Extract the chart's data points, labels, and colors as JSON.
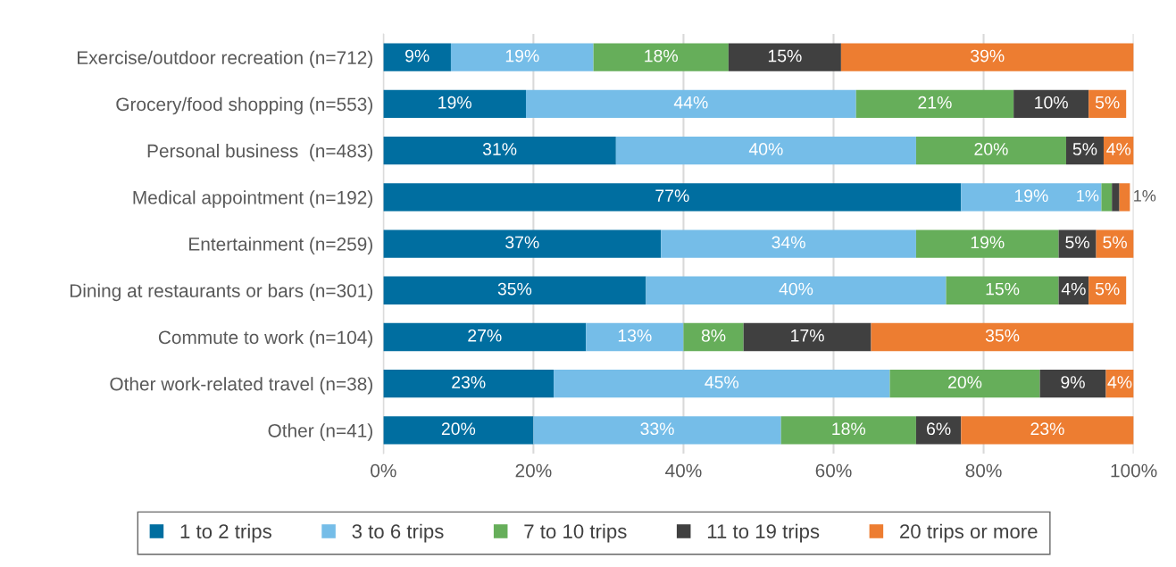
{
  "chart_data": {
    "type": "bar",
    "orientation": "horizontal",
    "stacked": true,
    "categories": [
      "Exercise/outdoor recreation (n=712)",
      "Grocery/food shopping (n=553)",
      "Personal business  (n=483)",
      "Medical appointment (n=192)",
      "Entertainment (n=259)",
      "Dining at restaurants or bars (n=301)",
      "Commute to work (n=104)",
      "Other work-related travel (n=38)",
      "Other (n=41)"
    ],
    "series": [
      {
        "name": "1 to 2 trips",
        "color": "#006ea0",
        "values": [
          9,
          19,
          31,
          77,
          37,
          35,
          27,
          22.7,
          20
        ],
        "value_labels": [
          "9%",
          "19%",
          "31%",
          "77%",
          "37%",
          "35%",
          "27%",
          "23%",
          "20%"
        ]
      },
      {
        "name": "3 to 6 trips",
        "color": "#75bde8",
        "values": [
          19,
          44,
          40,
          18.7,
          34,
          40,
          13,
          44.8,
          33
        ],
        "value_labels": [
          "19%",
          "44%",
          "40%",
          "19%",
          "34%",
          "40%",
          "13%",
          "45%",
          "33%"
        ]
      },
      {
        "name": "7 to 10 trips",
        "color": "#66ae5a",
        "values": [
          18,
          21,
          20,
          1.4,
          19,
          15,
          8,
          20,
          18
        ],
        "value_labels": [
          "18%",
          "21%",
          "20%",
          "1%",
          "19%",
          "15%",
          "8%",
          "20%",
          "18%"
        ]
      },
      {
        "name": "11 to 19 trips",
        "color": "#404040",
        "values": [
          15,
          10,
          5,
          1,
          5,
          4,
          17,
          8.8,
          6
        ],
        "value_labels": [
          "15%",
          "10%",
          "5%",
          null,
          "5%",
          "4%",
          "17%",
          "9%",
          "6%"
        ]
      },
      {
        "name": "20 trips or more",
        "color": "#ed7d31",
        "values": [
          39,
          5,
          4,
          1.4,
          5,
          5,
          35,
          3.7,
          23
        ],
        "value_labels": [
          "39%",
          "5%",
          "4%",
          "1%",
          "5%",
          "5%",
          "35%",
          "4%",
          "23%"
        ]
      }
    ],
    "xlim": [
      0,
      100
    ],
    "xticks": [
      {
        "value": 0,
        "label": "0%"
      },
      {
        "value": 20,
        "label": "20%"
      },
      {
        "value": 40,
        "label": "40%"
      },
      {
        "value": 60,
        "label": "60%"
      },
      {
        "value": 80,
        "label": "80%"
      },
      {
        "value": 100,
        "label": "100%"
      }
    ],
    "grid": "x",
    "legend": "bottom"
  }
}
